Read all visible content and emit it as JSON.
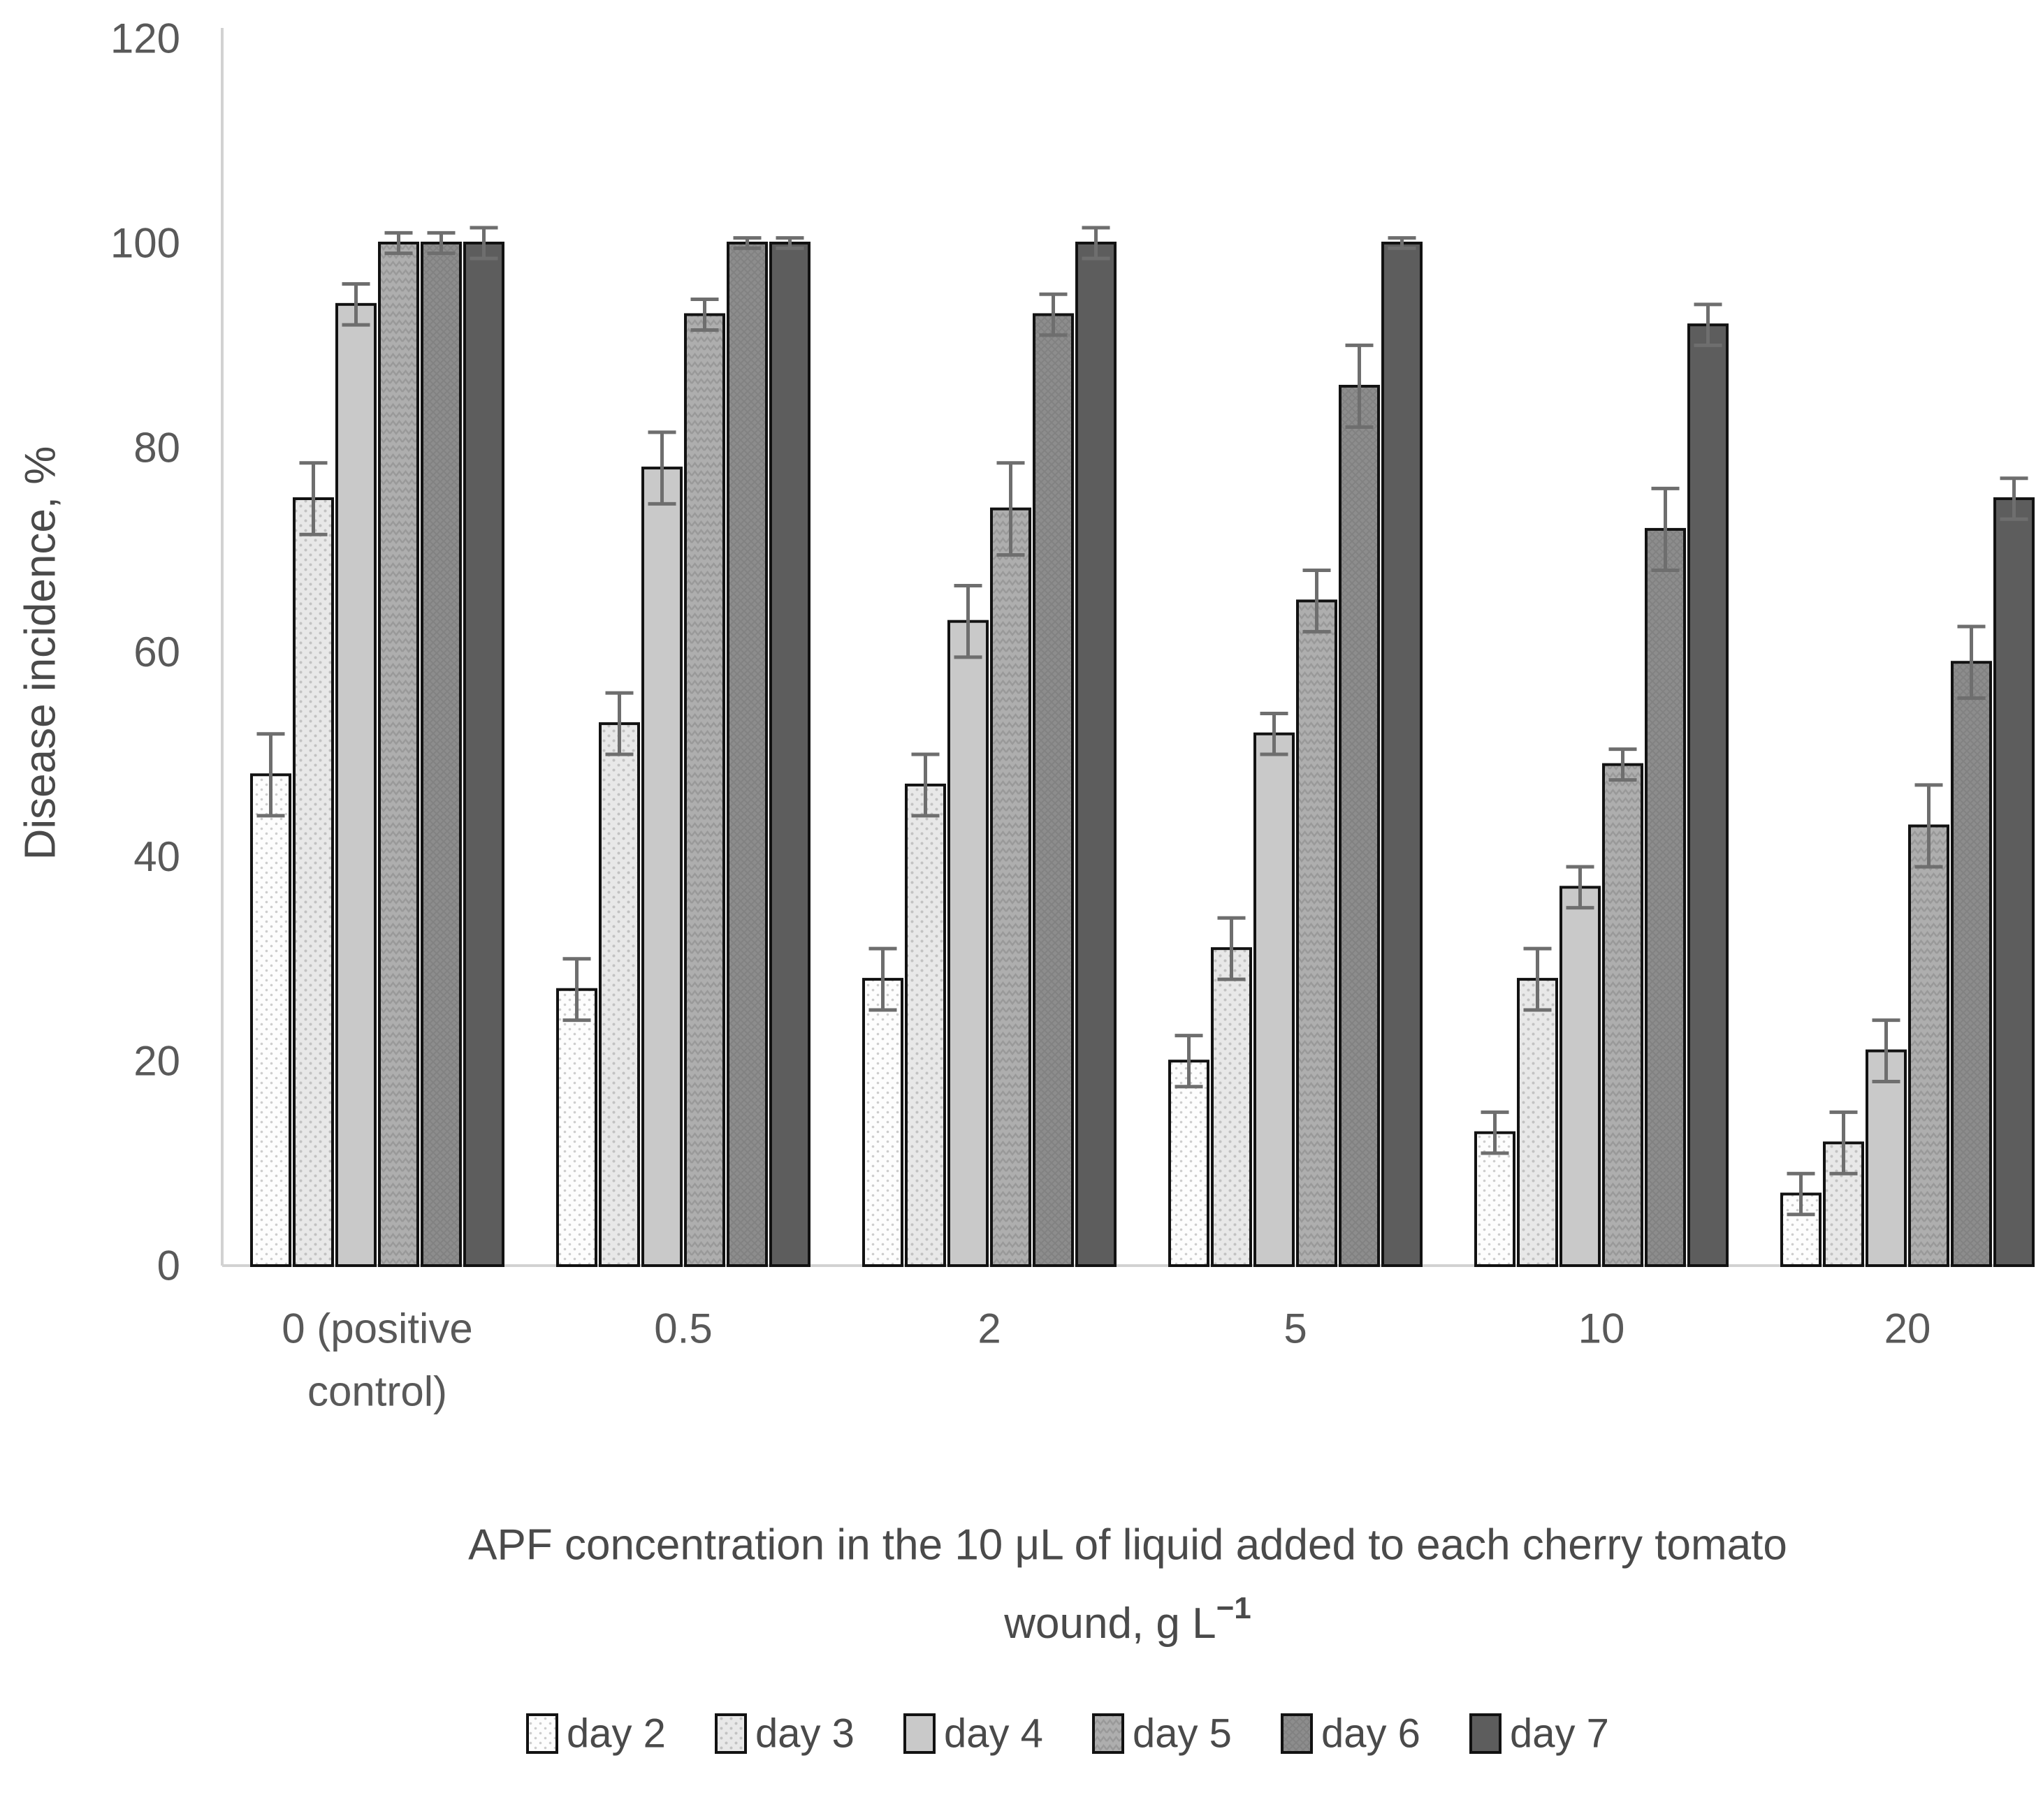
{
  "chart_data": {
    "type": "bar",
    "title": "",
    "ylabel": "Disease incidence, %",
    "xlabel_line1": "APF concentration in the 10 μL of liquid added to each cherry tomato",
    "xlabel_line2_base": "wound, g L",
    "xlabel_line2_sup": "−1",
    "categories": [
      [
        "0 (positive",
        "control)"
      ],
      [
        "0.5"
      ],
      [
        "2"
      ],
      [
        "5"
      ],
      [
        "10"
      ],
      [
        "20"
      ]
    ],
    "ylim": [
      0,
      120
    ],
    "yticks": [
      0,
      20,
      40,
      60,
      80,
      100,
      120
    ],
    "grid": false,
    "legend_position": "bottom",
    "series": [
      {
        "name": "day 2",
        "values": [
          48,
          27,
          28,
          20,
          13,
          7
        ],
        "errors": [
          4,
          3,
          3,
          2.5,
          2,
          2
        ],
        "fill": "#fdfdfd",
        "pattern": "dots-light"
      },
      {
        "name": "day 3",
        "values": [
          75,
          53,
          47,
          31,
          28,
          12
        ],
        "errors": [
          3.5,
          3,
          3,
          3,
          3,
          3
        ],
        "fill": "#e8e8e8",
        "pattern": "dots"
      },
      {
        "name": "day 4",
        "values": [
          94,
          78,
          63,
          52,
          37,
          21
        ],
        "errors": [
          2,
          3.5,
          3.5,
          2,
          2,
          3
        ],
        "fill": "#c9c9c9",
        "pattern": "solid"
      },
      {
        "name": "day 5",
        "values": [
          100,
          93,
          74,
          65,
          49,
          43
        ],
        "errors": [
          1,
          1.5,
          4.5,
          3,
          1.5,
          4
        ],
        "fill": "#aeaeae",
        "pattern": "zigzag"
      },
      {
        "name": "day 6",
        "values": [
          100,
          100,
          93,
          86,
          72,
          59
        ],
        "errors": [
          1,
          0.5,
          2,
          4,
          4,
          3.5
        ],
        "fill": "#8d8d8d",
        "pattern": "weave"
      },
      {
        "name": "day 7",
        "values": [
          100,
          100,
          100,
          100,
          92,
          75
        ],
        "errors": [
          1.5,
          0.5,
          1.5,
          0.5,
          2,
          2
        ],
        "fill": "#5d5d5d",
        "pattern": "solid"
      }
    ]
  },
  "colors": {
    "axis_line": "#d2d2d2",
    "tick_label": "#595959",
    "axis_title": "#4a4a4a",
    "bar_border": "#121212",
    "error_bar": "#6e6e6e",
    "legend_text": "#4a4a4a"
  }
}
